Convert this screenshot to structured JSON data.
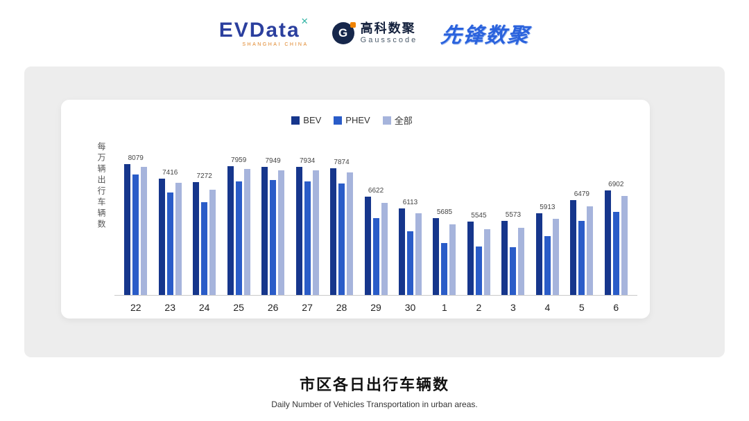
{
  "header": {
    "evdata": {
      "name": "EVData",
      "mark": "✕",
      "mark_color": "#35b5a5",
      "wordmark_color": "#2b3f9e",
      "tagline": "SHANGHAI CHINA"
    },
    "gausscode": {
      "icon_letter": "G",
      "cn": "高科数聚",
      "en": "Gausscode"
    },
    "xianfeng": {
      "text": "先锋数聚",
      "color": "#2a62dd"
    }
  },
  "chart_data": {
    "type": "bar",
    "title": "市区各日出行车辆数",
    "subtitle": "Daily Number of Vehicles Transportation in urban areas.",
    "ylabel": "每万辆出行车辆数",
    "categories": [
      "22",
      "23",
      "24",
      "25",
      "26",
      "27",
      "28",
      "29",
      "30",
      "1",
      "2",
      "3",
      "4",
      "5",
      "6"
    ],
    "series": [
      {
        "name": "BEV",
        "color": "#16368c",
        "values": [
          8079,
          7416,
          7272,
          7959,
          7949,
          7934,
          7874,
          6622,
          6113,
          5685,
          5545,
          5573,
          5913,
          6479,
          6902
        ]
      },
      {
        "name": "PHEV",
        "color": "#2a5cc8",
        "values": [
          7600,
          6800,
          6400,
          7300,
          7350,
          7300,
          7200,
          5700,
          5100,
          4600,
          4450,
          4400,
          4900,
          5550,
          5950
        ]
      },
      {
        "name": "全部",
        "color": "#a6b4dc",
        "values": [
          7950,
          7250,
          6950,
          7850,
          7800,
          7780,
          7700,
          6350,
          5900,
          5400,
          5200,
          5250,
          5650,
          6200,
          6650
        ]
      }
    ],
    "labels": [
      8079,
      7416,
      7272,
      7959,
      7949,
      7934,
      7874,
      6622,
      6113,
      5685,
      5545,
      5573,
      5913,
      6479,
      6902
    ],
    "ylim": [
      2300,
      8400
    ],
    "grid": false,
    "legend_position": "top"
  }
}
